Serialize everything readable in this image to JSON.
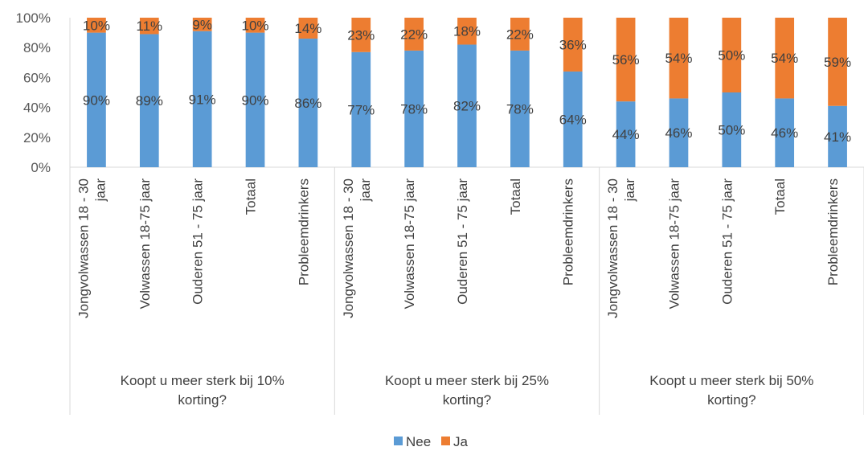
{
  "chart_data": {
    "type": "bar",
    "stacked": true,
    "percent_stacked": true,
    "yticks": [
      "0%",
      "20%",
      "40%",
      "60%",
      "80%",
      "100%"
    ],
    "ylim": [
      0,
      100
    ],
    "grid": false,
    "legend_position": "bottom",
    "groups": [
      {
        "label_lines": [
          "Koopt u meer sterk bij 10%",
          "korting?"
        ],
        "categories": [
          {
            "lines": [
              "Jongvolwassen 18 - 30",
              "jaar"
            ],
            "nee": 90,
            "ja": 10,
            "nee_label": "90%",
            "ja_label": "10%"
          },
          {
            "lines": [
              "Volwassen 18-75 jaar"
            ],
            "nee": 89,
            "ja": 11,
            "nee_label": "89%",
            "ja_label": "11%"
          },
          {
            "lines": [
              "Ouderen 51 - 75 jaar"
            ],
            "nee": 91,
            "ja": 9,
            "nee_label": "91%",
            "ja_label": "9%"
          },
          {
            "lines": [
              "Totaal"
            ],
            "nee": 90,
            "ja": 10,
            "nee_label": "90%",
            "ja_label": "10%"
          },
          {
            "lines": [
              "Probleemdrinkers"
            ],
            "nee": 86,
            "ja": 14,
            "nee_label": "86%",
            "ja_label": "14%"
          }
        ]
      },
      {
        "label_lines": [
          "Koopt u meer sterk bij 25%",
          "korting?"
        ],
        "categories": [
          {
            "lines": [
              "Jongvolwassen 18 - 30",
              "jaar"
            ],
            "nee": 77,
            "ja": 23,
            "nee_label": "77%",
            "ja_label": "23%"
          },
          {
            "lines": [
              "Volwassen 18-75 jaar"
            ],
            "nee": 78,
            "ja": 22,
            "nee_label": "78%",
            "ja_label": "22%"
          },
          {
            "lines": [
              "Ouderen 51 - 75 jaar"
            ],
            "nee": 82,
            "ja": 18,
            "nee_label": "82%",
            "ja_label": "18%"
          },
          {
            "lines": [
              "Totaal"
            ],
            "nee": 78,
            "ja": 22,
            "nee_label": "78%",
            "ja_label": "22%"
          },
          {
            "lines": [
              "Probleemdrinkers"
            ],
            "nee": 64,
            "ja": 36,
            "nee_label": "64%",
            "ja_label": "36%"
          }
        ]
      },
      {
        "label_lines": [
          "Koopt u meer sterk bij 50%",
          "korting?"
        ],
        "categories": [
          {
            "lines": [
              "Jongvolwassen 18 - 30",
              "jaar"
            ],
            "nee": 44,
            "ja": 56,
            "nee_label": "44%",
            "ja_label": "56%"
          },
          {
            "lines": [
              "Volwassen 18-75 jaar"
            ],
            "nee": 46,
            "ja": 54,
            "nee_label": "46%",
            "ja_label": "54%"
          },
          {
            "lines": [
              "Ouderen 51 - 75 jaar"
            ],
            "nee": 50,
            "ja": 50,
            "nee_label": "50%",
            "ja_label": "50%"
          },
          {
            "lines": [
              "Totaal"
            ],
            "nee": 46,
            "ja": 54,
            "nee_label": "46%",
            "ja_label": "54%"
          },
          {
            "lines": [
              "Probleemdrinkers"
            ],
            "nee": 41,
            "ja": 59,
            "nee_label": "41%",
            "ja_label": "59%"
          }
        ]
      }
    ],
    "series": [
      {
        "name": "Nee",
        "key": "nee",
        "color": "#5B9BD5"
      },
      {
        "name": "Ja",
        "key": "ja",
        "color": "#ED7D31"
      }
    ]
  }
}
